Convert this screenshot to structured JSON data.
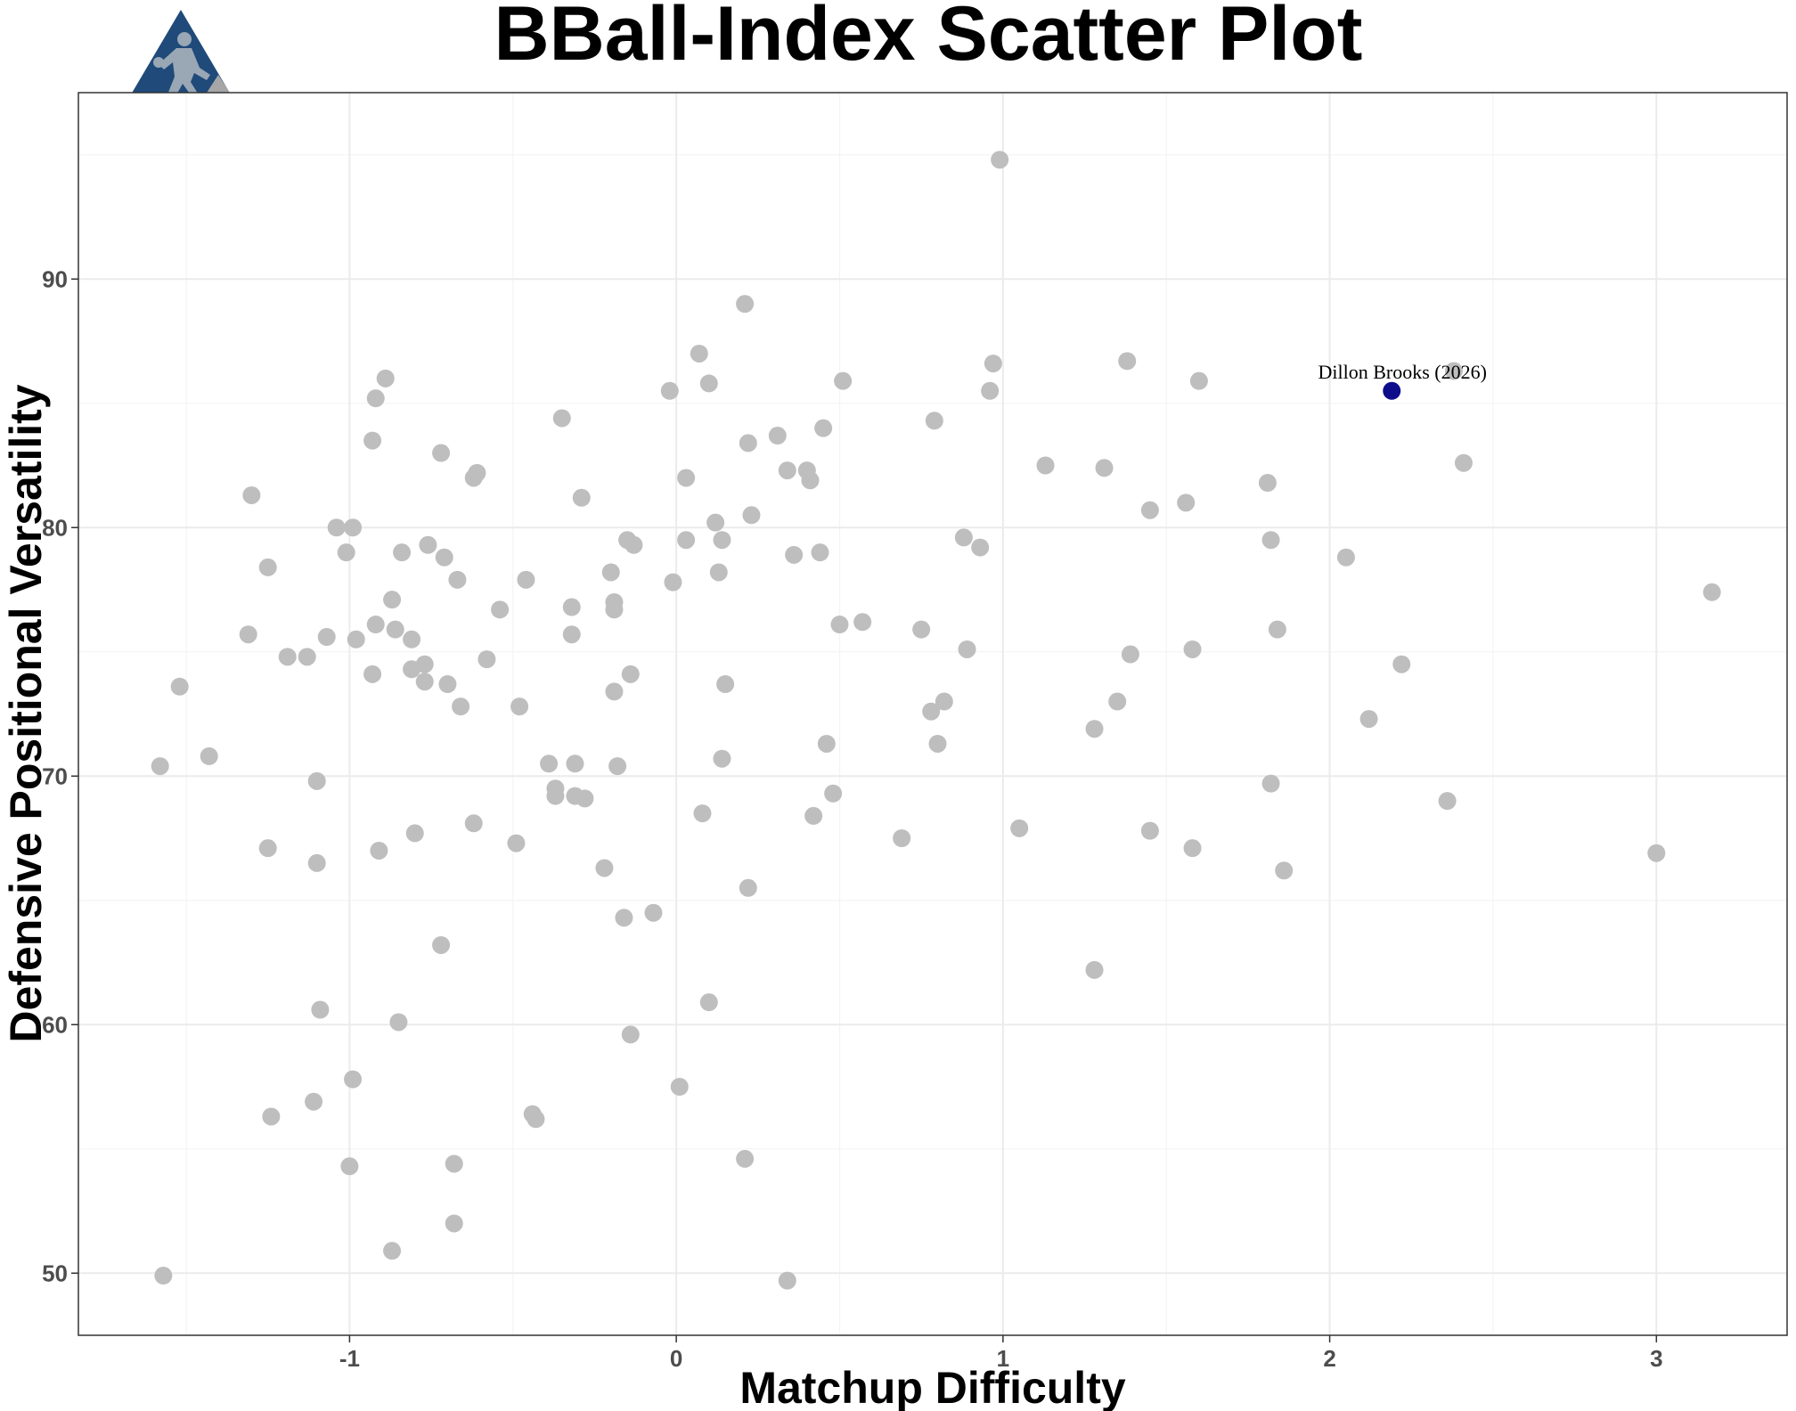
{
  "chart_data": {
    "type": "scatter",
    "title": "BBall-Index Scatter Plot",
    "xlabel": "Matchup Difficulty",
    "ylabel": "Defensive Positional Versatility",
    "xlim": [
      -1.83,
      3.4
    ],
    "ylim": [
      47.5,
      97.5
    ],
    "x_ticks": [
      -1,
      0,
      1,
      2,
      3
    ],
    "y_ticks": [
      50,
      60,
      70,
      80,
      90
    ],
    "grid": true,
    "colors": {
      "point": "#bebebe",
      "highlight": "#0d0d8c",
      "logo_primary": "#1f4a7a",
      "logo_secondary": "#a6a6a6"
    },
    "logo": "bball-index-logo",
    "highlight": {
      "label": "Dillon Brooks (2026)",
      "x": 2.19,
      "y": 85.5
    },
    "points": [
      [
        -1.58,
        70.4
      ],
      [
        -1.57,
        49.9
      ],
      [
        -1.52,
        73.6
      ],
      [
        -1.43,
        70.8
      ],
      [
        -1.31,
        75.7
      ],
      [
        -1.3,
        81.3
      ],
      [
        -1.25,
        67.1
      ],
      [
        -1.25,
        78.4
      ],
      [
        -1.24,
        56.3
      ],
      [
        -1.19,
        74.8
      ],
      [
        -1.13,
        74.8
      ],
      [
        -1.11,
        56.9
      ],
      [
        -1.1,
        69.8
      ],
      [
        -1.1,
        66.5
      ],
      [
        -1.09,
        60.6
      ],
      [
        -1.07,
        75.6
      ],
      [
        -1.04,
        80.0
      ],
      [
        -1.01,
        79.0
      ],
      [
        -0.99,
        80.0
      ],
      [
        -0.98,
        75.5
      ],
      [
        -0.99,
        57.8
      ],
      [
        -1.0,
        54.3
      ],
      [
        -0.93,
        74.1
      ],
      [
        -0.93,
        83.5
      ],
      [
        -0.92,
        85.2
      ],
      [
        -0.92,
        76.1
      ],
      [
        -0.91,
        67.0
      ],
      [
        -0.89,
        86.0
      ],
      [
        -0.87,
        77.1
      ],
      [
        -0.86,
        75.9
      ],
      [
        -0.85,
        60.1
      ],
      [
        -0.84,
        79.0
      ],
      [
        -0.87,
        50.9
      ],
      [
        -0.81,
        75.5
      ],
      [
        -0.81,
        74.3
      ],
      [
        -0.8,
        67.7
      ],
      [
        -0.77,
        74.5
      ],
      [
        -0.77,
        73.8
      ],
      [
        -0.76,
        79.3
      ],
      [
        -0.72,
        83.0
      ],
      [
        -0.71,
        78.8
      ],
      [
        -0.7,
        73.7
      ],
      [
        -0.72,
        63.2
      ],
      [
        -0.67,
        77.9
      ],
      [
        -0.66,
        72.8
      ],
      [
        -0.68,
        54.4
      ],
      [
        -0.68,
        52.0
      ],
      [
        -0.62,
        82.0
      ],
      [
        -0.61,
        82.2
      ],
      [
        -0.62,
        68.1
      ],
      [
        -0.58,
        74.7
      ],
      [
        -0.54,
        76.7
      ],
      [
        -0.48,
        72.8
      ],
      [
        -0.49,
        67.3
      ],
      [
        -0.46,
        77.9
      ],
      [
        -0.44,
        56.4
      ],
      [
        -0.43,
        56.2
      ],
      [
        -0.39,
        70.5
      ],
      [
        -0.37,
        69.5
      ],
      [
        -0.37,
        69.2
      ],
      [
        -0.35,
        84.4
      ],
      [
        -0.32,
        76.8
      ],
      [
        -0.32,
        75.7
      ],
      [
        -0.31,
        69.2
      ],
      [
        -0.31,
        70.5
      ],
      [
        -0.28,
        69.1
      ],
      [
        -0.29,
        81.2
      ],
      [
        -0.22,
        66.3
      ],
      [
        -0.2,
        78.2
      ],
      [
        -0.19,
        77.0
      ],
      [
        -0.19,
        76.7
      ],
      [
        -0.19,
        73.4
      ],
      [
        -0.18,
        70.4
      ],
      [
        -0.16,
        64.3
      ],
      [
        -0.15,
        79.5
      ],
      [
        -0.13,
        79.3
      ],
      [
        -0.14,
        59.6
      ],
      [
        -0.14,
        74.1
      ],
      [
        -0.07,
        64.5
      ],
      [
        -0.02,
        85.5
      ],
      [
        -0.01,
        77.8
      ],
      [
        0.01,
        57.5
      ],
      [
        0.03,
        82.0
      ],
      [
        0.03,
        79.5
      ],
      [
        0.07,
        87.0
      ],
      [
        0.08,
        68.5
      ],
      [
        0.1,
        85.8
      ],
      [
        0.1,
        60.9
      ],
      [
        0.12,
        80.2
      ],
      [
        0.13,
        78.2
      ],
      [
        0.14,
        79.5
      ],
      [
        0.14,
        70.7
      ],
      [
        0.15,
        73.7
      ],
      [
        0.21,
        54.6
      ],
      [
        0.21,
        89.0
      ],
      [
        0.22,
        83.4
      ],
      [
        0.22,
        65.5
      ],
      [
        0.23,
        80.5
      ],
      [
        0.31,
        83.7
      ],
      [
        0.34,
        82.3
      ],
      [
        0.34,
        49.7
      ],
      [
        0.36,
        78.9
      ],
      [
        0.4,
        82.3
      ],
      [
        0.41,
        81.9
      ],
      [
        0.42,
        68.4
      ],
      [
        0.44,
        79.0
      ],
      [
        0.45,
        84.0
      ],
      [
        0.46,
        71.3
      ],
      [
        0.48,
        69.3
      ],
      [
        0.5,
        76.1
      ],
      [
        0.51,
        85.9
      ],
      [
        0.57,
        76.2
      ],
      [
        0.69,
        67.5
      ],
      [
        0.75,
        75.9
      ],
      [
        0.78,
        72.6
      ],
      [
        0.79,
        84.3
      ],
      [
        0.8,
        71.3
      ],
      [
        0.82,
        73.0
      ],
      [
        0.88,
        79.6
      ],
      [
        0.89,
        75.1
      ],
      [
        0.93,
        79.2
      ],
      [
        0.96,
        85.5
      ],
      [
        0.97,
        86.6
      ],
      [
        0.99,
        94.8
      ],
      [
        1.05,
        67.9
      ],
      [
        1.13,
        82.5
      ],
      [
        1.28,
        71.9
      ],
      [
        1.28,
        62.2
      ],
      [
        1.31,
        82.4
      ],
      [
        1.35,
        73.0
      ],
      [
        1.38,
        86.7
      ],
      [
        1.39,
        74.9
      ],
      [
        1.45,
        80.7
      ],
      [
        1.45,
        67.8
      ],
      [
        1.56,
        81.0
      ],
      [
        1.58,
        75.1
      ],
      [
        1.58,
        67.1
      ],
      [
        1.6,
        85.9
      ],
      [
        1.81,
        81.8
      ],
      [
        1.82,
        79.5
      ],
      [
        1.82,
        69.7
      ],
      [
        1.84,
        75.9
      ],
      [
        1.86,
        66.2
      ],
      [
        2.05,
        78.8
      ],
      [
        2.12,
        72.3
      ],
      [
        2.22,
        74.5
      ],
      [
        2.36,
        69.0
      ],
      [
        2.38,
        86.3
      ],
      [
        2.41,
        82.6
      ],
      [
        3.0,
        66.9
      ],
      [
        3.17,
        77.4
      ]
    ]
  }
}
